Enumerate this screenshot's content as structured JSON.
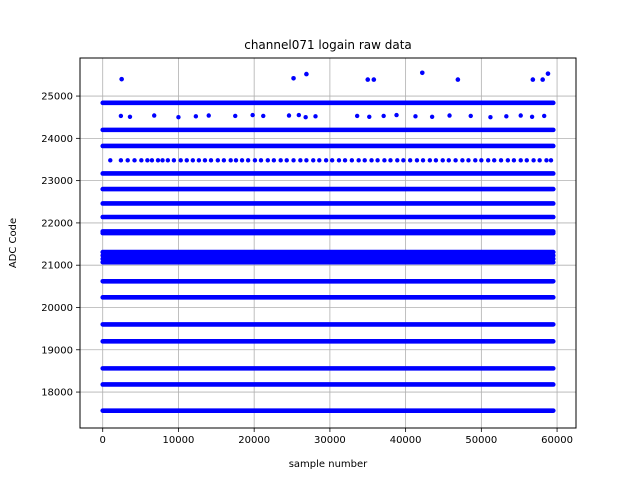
{
  "chart_data": {
    "type": "scatter",
    "title": "channel071 logain raw data",
    "xlabel": "sample number",
    "ylabel": "ADC Code",
    "xlim": [
      -3000,
      62500
    ],
    "ylim": [
      17150,
      25900
    ],
    "x_ticks": [
      0,
      10000,
      20000,
      30000,
      40000,
      50000,
      60000
    ],
    "x_tick_labels": [
      "0",
      "10000",
      "20000",
      "30000",
      "40000",
      "50000",
      "60000"
    ],
    "y_ticks": [
      18000,
      19000,
      20000,
      21000,
      22000,
      23000,
      24000,
      25000
    ],
    "y_tick_labels": [
      "18000",
      "19000",
      "20000",
      "21000",
      "22000",
      "23000",
      "24000",
      "25000"
    ],
    "grid": true,
    "marker_color": "#0000ff",
    "sample_range": [
      0,
      59500
    ],
    "dense_levels": [
      17560,
      18180,
      18560,
      19200,
      19600,
      20240,
      20620,
      21070,
      21150,
      21230,
      21310,
      21760,
      21800,
      22140,
      22460,
      22800,
      23170,
      23820,
      24200,
      24840
    ],
    "sparse_level": 23480,
    "sparse_level_points": [
      1000,
      2400,
      3300,
      4200,
      5100,
      5900,
      6500,
      7300,
      7900,
      8600,
      9400,
      10300,
      11100,
      11900,
      12700,
      13500,
      14300,
      15200,
      16000,
      16900,
      17600,
      18400,
      19200,
      20100,
      20900,
      21800,
      22600,
      23500,
      24300,
      25200,
      26100,
      26900,
      27800,
      28600,
      29500,
      30300,
      31200,
      32000,
      32900,
      33800,
      34600,
      35500,
      36300,
      37200,
      38000,
      38900,
      39700,
      40600,
      41500,
      42300,
      43200,
      44000,
      44900,
      45700,
      46600,
      47500,
      48300,
      49200,
      50000,
      50900,
      51700,
      52600,
      53500,
      54300,
      55200,
      56000,
      56900,
      57700,
      58600,
      59200
    ],
    "points_near_24500": [
      [
        2400,
        24530
      ],
      [
        3600,
        24510
      ],
      [
        6800,
        24540
      ],
      [
        10000,
        24500
      ],
      [
        12300,
        24520
      ],
      [
        14000,
        24540
      ],
      [
        17500,
        24530
      ],
      [
        19800,
        24550
      ],
      [
        21200,
        24530
      ],
      [
        24600,
        24540
      ],
      [
        25900,
        24550
      ],
      [
        26800,
        24500
      ],
      [
        28100,
        24520
      ],
      [
        33600,
        24530
      ],
      [
        35200,
        24510
      ],
      [
        37100,
        24530
      ],
      [
        38800,
        24550
      ],
      [
        41300,
        24520
      ],
      [
        43500,
        24510
      ],
      [
        45800,
        24540
      ],
      [
        48600,
        24530
      ],
      [
        51200,
        24500
      ],
      [
        53300,
        24520
      ],
      [
        55200,
        24540
      ],
      [
        56700,
        24510
      ],
      [
        58300,
        24530
      ]
    ],
    "outliers": [
      [
        2500,
        25400
      ],
      [
        25200,
        25420
      ],
      [
        26900,
        25520
      ],
      [
        35000,
        25390
      ],
      [
        35800,
        25390
      ],
      [
        42200,
        25550
      ],
      [
        46900,
        25390
      ],
      [
        56800,
        25390
      ],
      [
        58100,
        25390
      ],
      [
        58800,
        25530
      ]
    ]
  }
}
